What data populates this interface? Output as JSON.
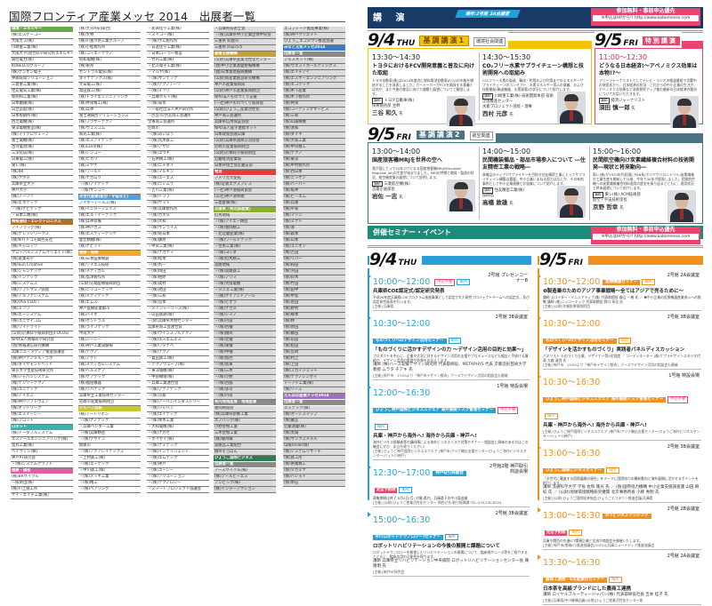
{
  "left_page": {
    "title": "国際フロンティア産業メッセ 2014　出展者一覧",
    "columns": [
      [
        {
          "h": "環境・エネルギー",
          "c": "#6aa84f"
        },
        "(株)エスケーコー",
        "大阪ガス(株)",
        "川崎重工業(株)",
        "大阪大学(接合科学研究所エネルギーセンター)",
        "関西電力(株)",
        "KOBELCOグループ",
        "(株)ケンオン電子",
        "神鋼環境ソリューション",
        "三菱重工業(株)",
        "住友電気工業(株)",
        "新明和工業(株)",
        "日本触媒(株)",
        "日立造船(株)",
        "日本製鋼所(株)",
        "西芝電機(株)",
        "東洋電機製造(株)",
        "(株)マイクロウェーブ",
        "富士電機(株)",
        "古河電池(株)",
        "三洋化成(株)",
        "日東電工(株)",
        "東レ(株)",
        "(株)IHI",
        "(株)クボタ",
        "兵庫県立大学",
        "神戸大学",
        "(株)ノーリツ",
        "(株)エネテック",
        "・(株)ナビテック",
        "・日本工機(株)",
        {
          "h": "情報通信・エレクトロニクス",
          "c": "#b0702a"
        },
        "アイフラッグ(株)",
        "(株)ナレッジワークス",
        "(株)NTTドコモ関西支社",
        "(株)キャロッツ",
        "グローバルシステムクリエイト(株)",
        "(株)産業光学",
        "(株)Sun Creative",
        "(株)シャンテック",
        "(株)インテック",
        "(株)システムズ",
        "(株)ソフトウェア開発",
        "(株)アルファシステム",
        "(株)OSS LSOFT",
        "(株)ミツワ",
        "(株)エーシステム",
        "(株)ユニサイコム",
        "(株)ワイドライト",
        "(公財)計算科学振興財団(FOCUS)",
        "NPO法人情報科学研究会",
        "(独)情報通信研究機構",
        "兵庫ニューメディア推進協議会",
        "(株)神戸デジタル・ラボ",
        "(株)ダイヤモンドヘッド",
        "東京大学生産技術研究所",
        "(株)ジャパンシステム",
        "(株)デンソーテクノ",
        "(株)ユニテック",
        "(株)アイエス",
        "(株)神戸ソフトウェア",
        "(株)ネットワーク",
        "(株)エスイーシー",
        "(株)プロット",
        {
          "h": "ロボット",
          "c": "#3bb3b3"
        },
        "(株)イーダブルシステム",
        "エスアールエンジニアリング(株)",
        "島丸工業(株)",
        "ベイウィン(株)",
        "神戸RT研究会",
        "・(株)システムクラフト",
        {
          "h": "健康・福祉",
          "c": "#e060a8"
        },
        "(株)BRサイクル",
        "一般財団(株)",
        "(株)川上鉄工所",
        "ケイ・エイチ工業(株)"
      ],
      [
        "(株)大分A技(関西)",
        "(株)大林",
        "(株)川重冷熱工業グループ",
        "(株)小松製作所",
        "(株)コーエーテクノ",
        "昭和電機(株)",
        "(株)東邦",
        "セントラル電気(株)",
        "ダイナテックス(株)",
        "大日電工(株)",
        "高田鉄工(株)",
        "(株)トライエンジニアリング",
        "(株)共栄精工(株)",
        "(株)兵神",
        "富士通関西ソリューションズ",
        "(株)ブラザーテクノ",
        "(株)ウェスコム",
        "和光工業(株)",
        "(株)エスアイテック",
        "(株)Land(株)",
        "(株)シンコー",
        "(株)ヒカリ",
        "(株)ミヤケ",
        "(株)ワールド",
        "(株)ナカムラ",
        "・(株)アイテック",
        "・(株)サンコー",
        {
          "h": "次世代産業(航空・宇宙など)",
          "c": "#5aa0d8"
        },
        "アイボーアールズ(株)",
        "(株)インターフェイス",
        "(株)エル・イーテック",
        "(株)兵神装備",
        "(株)神戸ガス",
        "(株)エスディーテック",
        "愛宕精機(株)",
        "(株)ナビット",
        {
          "h": "健康・医療",
          "c": "#f0a830"
        },
        "(株)日本医療機器",
        "(株)ワイエム技研",
        "(株)メディカル",
        "(株)島津製作所",
        "(公財)先端医療振興財団",
        "(株)ニッコーテック",
        "(株)メディテック",
        "(株)エムズ",
        "神戸医療産業都市",
        "(株)バイオ",
        "(株)セントラル",
        "(株)ライフテック",
        "甲南大学",
        "(株)ジーシー",
        "(株)神戸工業試験場",
        "(株)テクノ",
        "(株)アクト",
        "(株)メディカルシステム",
        "(株)ヘルスケア",
        "(株)ケアテック",
        "(株)福祉機器",
        "(株)リハテック",
        "兵庫県立工業技術センター",
        "尼崎市産業振興財団",
        {
          "h": "グループ出展",
          "c": "#c8c830"
        },
        "(株)アートリボン",
        "・(株)ナノテック",
        "・兵庫ベンダー工業",
        "・(株)兵庫精密",
        "・(株)デザイン",
        "姫路市",
        "・(株)アクアレイテックス",
        "・上村鉄工(株)",
        "・(株)ユーテック",
        "・中川鉄工(株)",
        "・(株)メッキ工業",
        "・(株)精工",
        "・(株)ベアリング"
      ],
      [
        "・新興化学工業(株)",
        "・スイコー(株)",
        "・(株)ポム製作所",
        "・日進化学工業(株)",
        "・日本ローラー製造",
        "・竹内工業(株)",
        "・北斗電子工業(株)",
        "・マルヤ(株)",
        "・(株)サンテック",
        "・(株)テクノアーツ",
        "・(株)ミツワ",
        "・兵庫ボルト(株)",
        "・(株)菊水",
        "・一般社団法人神戸研究所",
        "・西宮市/西宮商工会議所",
        "宝塚商工会議所",
        "尼崎市",
        "・(株)あいぼう",
        "・(株)荒木鉄工",
        "・(株)アサヒ",
        "・(株)ユウキ",
        "・石井精工(株)",
        "・(株)ニチダイ",
        "・(株)マルキン",
        "・(株)ユーエス",
        "・(株)ニシムラ",
        "・吉川工業(株)",
        "・(株)トップ",
        "・(株)ヤマト",
        "・(株)兵庫製作所",
        "・(株)カネタ",
        "・(株)大和",
        "・(株)サンライズ",
        "・(株)新日本",
        "・(株)藤原",
        "・中央工業(株)",
        "・(株)ナカヤマ",
        "・(株)松本",
        "・(株)丸一",
        "・(株)岡田",
        "・(株)柏原",
        "・(株)奥村",
        "・(株)池田",
        "・(株)三和",
        "・(株)宮本",
        "・メイジャーリース(株)",
        "・山田鉄鋼(株)",
        "・(財)兵庫県木材センター",
        "兵庫県商工会連合会",
        "・(株)ウインスブルテクノ",
        "・(株)エスエムエス",
        "・(株)ワタナベ",
        "・(株)テクノ",
        "・喜田鉄工(株)",
        "・テクノウェーブ(株)",
        "・東洋電機(株)",
        "・中部機械(株)",
        "・兵庫工業連合会",
        "・(株)アクアテック",
        "・(株)京都",
        "・(株)アーバンインダストリー",
        "・(株)ジャパン",
        "・(株)エイテック",
        "・(株)青木工業",
        "・大和電機(株)",
        "・(株)ナガセ",
        "・ホクセイ(株)",
        "・(株)ナミテック",
        "・(株)インテリジェント",
        "・(株)エムテック",
        "・(株)神戸",
        "・(株)ユーシー",
        "・(株)ソリューション",
        "・(株)テクノロジー",
        "・スマートプロジェクト協議会"
      ],
      [
        "・兵庫県技術士会",
        "・(株)兵庫県中小企業団体中央会",
        "三重県 鈴鹿市",
        "三重県 四日市市",
        {
          "h": "産業支援機関",
          "c": "#c8a040"
        },
        "(公財)兵庫県産業活性化センター",
        "(独)中小企業基盤整備機構",
        "(独)日本貿易振興機構",
        "(公財)新産業創造研究機構",
        "神戸市産業振興局",
        "(公財)神戸市産業振興財団",
        "NPO法人ものづくり支援",
        "(一社)神戸ものづくり振興会",
        "(公財)ひょうご産業活性化",
        "神戸商工会議所",
        "兵庫県信用保証協会",
        "NPO法人産学連携ネット",
        "日本政策金融公庫",
        "(公財)兵庫県国際交流協会",
        "尼崎市産業振興財団",
        "(公財)計算科学振興財団",
        "近畿経済産業局",
        "日本弁理士会近畿支部",
        {
          "h": "物流",
          "c": "#e04040"
        },
        "アメリカ大使館",
        "(株)近鉄エクスプレス",
        "(一社)神戸港振興協会",
        "(公社)神戸港埠頭",
        "三菱倉庫(株)",
        {
          "h": "兵庫県「県北部産業」",
          "c": "#8ab030"
        },
        "但馬地域",
        "・(株)アイエー精密",
        "・(株)豊岡精工",
        "・北近畿産業(株)",
        "・(株)ワールドテック",
        "・但馬工業(株)",
        "・(株)ヨシダ",
        "・(株)但馬精工",
        "淡路地域",
        "・(株)淡路鉄工",
        "・(株)アリマ",
        "・(株)大阪電機",
        "・タニエ工業(株)",
        "・(株)ケイアンドアール",
        "・(株)ピオラ",
        "・(株)ナカタ",
        "・(株)シマノ",
        "・(株)丹波",
        "・(株)西播",
        "・(株)播州",
        "・(株)北播",
        "・(株)東播",
        "・(株)中播",
        "・(株)加西",
        "・(株)加東",
        "・(株)三木",
        "・(株)小野",
        "・(株)西脇",
        "・(株)多可",
        "・(株)丹南",
        {
          "h": "県内地域産業・地場産業",
          "c": "#8a8a8a"
        },
        "豊岡鞄協会",
        "(株)兵庫県新鮮工業",
        "エアバッグ(株)",
        "小野金物工業",
        "三木金物工業",
        "(株)播州織",
        "淡路瓦工業組合",
        "播州そろばん",
        {
          "h": "ひょうご国際ビジネス",
          "c": "#2e7d4f"
        },
        {
          "h": "出展者一覧",
          "c": "#8a8a8a"
        },
        "アースサイクル(株)",
        "(株)アールビーエス",
        "アンビック(株)",
        "(株)インターアクション"
      ],
      [
        "エコフィード推進事業(株)",
        "(株)神戸クリエイト",
        "ひょうごエコタウン推進会議",
        {
          "h": "みなと元気メッセ2014",
          "c": "#3a7cc8"
        },
        {
          "h": "出展者一覧",
          "c": "#8a8a8a"
        },
        "アルスネット(株)",
        "(株)ウエストホールディングス",
        "(株)エイチアイ",
        "(株)エスケーエンジニアリング",
        "(株)エコテック",
        "(株)木下産業",
        "(株)木下製作所",
        "(株)共栄",
        "(株)コーティングサービス",
        "(株)三和",
        "(株)山陽精機",
        "(株)清和",
        "(株)ダイキ",
        "(株)大和工業",
        "(株)中央精工",
        "(株)テクノ",
        "(株)東洋",
        "(株)中村製作所",
        "(株)西日本",
        "(株)ニッケン",
        "(株)ハーバー",
        "(株)阪神",
        "(株)ビーエム",
        "(株)兵庫",
        "(株)平和",
        "(株)マリン",
        "(株)ミナト",
        "(株)港",
        "(株)森本",
        "(株)山本",
        "(株)ユニオン",
        "(株)吉田",
        "(株)リバー",
        "(株)和田",
        "(株)浜田",
        "(株)鈴木",
        "(株)竹田",
        "(株)田中",
        "(株)中島",
        "(株)長田",
        "(株)野村",
        "(株)橋本",
        "(株)林",
        "(株)原田",
        "(株)藤田",
        "(株)前田",
        "(株)松田",
        "(株)宮崎",
        "(株)村上",
        "(株)上田",
        "(株)スカイジェット",
        "(株)テクノシンセイ",
        "トーアイ工業(株)",
        "(株)リーズ",
        {
          "h": "たんぽぽ産業メッセ2014",
          "c": "#a070c0"
        },
        {
          "h": "出展者一覧",
          "c": "#8a8a8a"
        },
        "エステック(株)",
        "(株)オーシスマップ",
        "(株)園芸",
        "近畿測量(株)",
        "(株)太陽",
        "(株)サンクスメタル",
        "山陽ronak(株)",
        "(株)システムリサーチ",
        "(株)鉄工所",
        "(株)鷲尾精工",
        "(株)タカミヤ",
        "(株)ハシモト",
        "(株)明石"
      ]
    ]
  },
  "right_page": {
    "banner_title": "講 演",
    "banner_location": "場所:2号館 3A会議室",
    "free_label": "参加無料・事前申込優先",
    "apply_label": "※申込はHPから!! http://www.kobemesse.com",
    "keynote1": {
      "date": "9/4",
      "day": "THU",
      "tag": "基調講演1",
      "category": "環境社会関連",
      "talks": [
        {
          "time": "13:30～14:30",
          "title": "トヨタにおけるFCV開発意義と普及に向けた取組",
          "body": "トヨタ自動車(株)は2014年度内に燃料電池自動車(FCV)の市販を開始することを発表しました。カーメーカーがFCVを開発する意義とは何か、また今後の普及に向けた課題と展望についてご解説します。",
          "lecturer": "講師",
          "org": "トヨタ自動車(株)",
          "role": "技術統括部 主幹",
          "name": "三谷 和久",
          "suffix": "氏"
        },
        {
          "time": "14:30～15:30",
          "title": "CO₂フリー水素サプライチェーン構想と技術開発への取組み",
          "body": "CO₂フリー水素の製造、輸送・貯蔵および利用までのエネルギーサプライチェーンのコンセプト、水素エネルギー導入の意義、および技術開発(輸送機器、水素発電)の状況について紹介します。",
          "lecturer": "講師",
          "org": "川崎重工業(株) 技術開発本部 技術企画推進センター",
          "role": "水素プロジェクト部長・理事",
          "name": "西村 元彦",
          "suffix": "氏"
        }
      ]
    },
    "special": {
      "date": "9/5",
      "day": "FRI",
      "tag": "特別講演",
      "talk": {
        "time": "11:00～12:30",
        "title": "どうなる日本経済!～アベノミクス効果は本物!?～",
        "body": "フリージャーナリストとしてテレビ・ラジオの報道番組で活躍中の須田氏から、日本経済の状況、これからの中小企業の生き方、アベノミクス効果など消費税率アップ後の最新の日本経済の動向についてお話いただきます。",
        "lecturer": "講師",
        "org": "経済ジャーナリスト",
        "name": "須田 慎一郎",
        "suffix": "氏"
      }
    },
    "keynote2": {
      "date": "9/5",
      "day": "FRI",
      "tag": "基調講演2",
      "category": "航空関連",
      "talks": [
        {
          "time": "13:00～14:00",
          "title": "国産旅客機MRJを世界の空へ",
          "body": "我が国にとって50年ぶりとなる国産旅客機MRJ(Mitsubishi Regional Jet)の生産が始まりました。MRJの特徴と開発・製造の状況、航空機産業の展望について説明します。",
          "lecturer": "講師",
          "org": "三菱航空機(株)",
          "role": "営業企画部長",
          "name": "岩佐 一志",
          "suffix": "氏"
        },
        {
          "time": "14:00～15:00",
          "title": "民間機装備品・部品市場参入について ―住友精密工業の戦略―",
          "body": "装備品のティア1サプライヤーを目指す住友精密工業にとってサプライチェイン構築は重要。中小企業にまねる努力はなにか、その有効事例として中小企業連携との協業について紹介します。",
          "lecturer": "講師",
          "org": "住友精密工業(株)",
          "role": "技師長",
          "name": "高橋 敦雄",
          "suffix": "氏"
        },
        {
          "time": "15:00～16:00",
          "title": "民間航空機向け炭素繊維複合材料の技術開発―現状と将来動向―",
          "body": "東レ(株)が1970年代初頭にPAN系(ポリアクリロニトリル)炭素繊維の工業生産を開始して以来、今年で40年が経過しました。民間航空機への炭素繊維複合材料適用の歴史を振り返るとともに、適用状況と将来展望について紹介します。",
          "lecturer": "講師",
          "org": "東レ(株) ACM技術部",
          "role": "航空・宇宙技術室長",
          "name": "京野 哲幸",
          "suffix": "氏"
        }
      ]
    },
    "seminar_title": "併催セミナー・イベント",
    "thu": {
      "date": "9/4",
      "day": "THU",
      "events": [
        {
          "time": "10:00～12:00",
          "label": "",
          "req": "申込不要",
          "place_tag": "場所",
          "place": "2号館 プレゼンコーナーB",
          "title": "兵庫県COE認定式/認定研究発表",
          "body": "平成26年度兵庫県COEプログラム推進事業として認定された研究プロジェクトチームへの認定式、及び認定研究発表を行います。",
          "speaker": "",
          "host": "[主催] 兵庫県"
        },
        {
          "time": "10:30～12:00",
          "label": "ものづくりへのデザイン活用セミナー",
          "req": "",
          "place_tag": "場所",
          "place": "2号館 3B会議室",
          "title": "「ものづくりに活かすデザインの力 ～デザイン活用の目的と効果～」",
          "body": "プロダクトを中心に、企業や大学に対するデザイン活用の支援やプロデュースなども幅広く手掛ける講師が、デザイン活用の重要や効果をお伝えします。",
          "speaker": "講師 (株)ハーズ実験デザイン研究所 代表取締役、METAPHYS 代表 京都造形芸術大学 教授 ムラタ チアキ 氏",
          "host": "[主催] 神戸市　13:00より「神戸市デザイン都市」ブースでデザイン活用の相談会も開催"
        },
        {
          "time": "12:00～16:30",
          "label": "ひょうご神戸国際ビジネススクエア 海外展開リスク管理セミナー",
          "req": "申込不要",
          "place_tag": "場所",
          "place": "1号館 特設会場",
          "title": "兵庫・神戸から海外へ! 海外から兵庫・神戸へ!",
          "body": "海外ビジネス経験者等の講師陣による海外ビジネスリスク対策セミナー・相談会に興味のある方はこの機会にぜひ、お立ち寄りください!",
          "speaker": "",
          "host": "[主催] ひょうご神戸国際ビジネススクエア (神戸市/アジア輸出支援センター/ひょうご海外ビジネスセンター/ジェトロ神戸)"
        },
        {
          "time": "12:30～17:00",
          "label": "神戸取引商談会",
          "req": "完全予約制",
          "place_tag": "場所",
          "place": "2号館2階 神戸取引商談会場",
          "title": "",
          "body": "募集期間は終了 8月4日(月) 対象:県内、兵庫県下の中小製造業",
          "speaker": "",
          "host": "[主催] (公財)ひょうご産業活性化センター 問合せ先:取引振興課 TEL:078-230-8324"
        },
        {
          "time": "15:00～16:30",
          "label": "RT(ロボットテクノロジー)セミナー",
          "req": "",
          "place_tag": "場所",
          "place": "2号館 3B会議室",
          "title": "ロボットリハビリテーションの今後の展開と課題について",
          "body": "ロボットテクノロジーを駆使したリハビリテーションの現場について、臨床例やニーズ等をご紹介するとともに、臨床応用の可能性を探ります。",
          "speaker": "講師 兵庫県立リハビリテーション中央病院 ロボットリハビリテーションセンター長 陳 隆明 氏",
          "host": "[主催] 神戸RT研究会"
        }
      ]
    },
    "fri": {
      "date": "9/5",
      "day": "FRI",
      "events": [
        {
          "time": "10:30～12:00",
          "label": "医療機器セミナー",
          "req": "",
          "place_tag": "場所",
          "place": "2号館 2A会議室",
          "title": "❶製造業のためのアジア事業戦略～全てはアジアで売るために～",
          "body": "講師 スパイダー・イニシアティブ(株) 代表取締役 森辺 一樹 氏 ／ ❷中小企業の医療機器産業参入への挑戦 講師 (株)ニッコーテック 代表取締役 野口 享志 氏",
          "speaker": "",
          "host": "[主催] (公財)先端医療振興財団"
        },
        {
          "time": "10:30～12:00",
          "label": "ものづくりへのデザイン活用セミナー",
          "req": "",
          "place_tag": "場所",
          "place": "2号館 3B会議室",
          "title": "「デザインを活かすものづくり」実践者パネルディスカッション",
          "body": "パネリスト ものづくり企業、デザイナー等5名程度 ／ コーディネーター (株)ケプラデザインスタジオ代表 大森 清貴 氏",
          "speaker": "",
          "host": "[主催] 神戸市　13:00より「神戸市デザイン都市」ブースでデザイン活用の相談会も開催"
        },
        {
          "time": "10:30～16:30",
          "label": "ひょうご神戸国際ビジネススクエア 海外展開リスク管理セミナー",
          "req": "申込不要",
          "place_tag": "場所",
          "place": "1号館 特設会場",
          "title": "兵庫・神戸から海外へ! 海外から兵庫・神戸へ!",
          "body": "",
          "speaker": "",
          "host": "[主催] ひょうご神戸国際ビジネススクエア (神戸市/アジア輸出支援センター/ひょうご海外ビジネスセンター/ジェトロ神戸)"
        },
        {
          "time": "13:00～16:30",
          "label": "ひょうご国際ビジネスセミナー",
          "req": "",
          "place_tag": "場所",
          "place": "2号館 3B会議室",
          "title": "",
          "body": "「次世代に羅進する国際展開の現在」をテーマに国際協力の最新動向と海外展開に活かせるポイントを紹介します。",
          "speaker": "講師 流通科学大学 学長 佐和 隆光 氏 ／ (独)国際協力機構 中小企業支援調査課 山田 麻紀 氏 ／ (公財)地球環境戦略研究機関 北京事務所長 小柳 秀明 氏",
          "host": "[主催] (公財)ひょうご国際経済協会/ひょうごエコタウン推進会議/兵庫県"
        },
        {
          "time": "13:00～16:30",
          "label": "ICTビジネスマッチング",
          "req": "完全予約制",
          "place_tag": "場所",
          "place": "2号館 2B会議室",
          "title": "",
          "body": "兵庫や関西の先進ICT関連企業と交流が商談会を開催いたします。",
          "speaker": "",
          "host": "[主催] 神戸市/地域ICT推進協議会(COPLI)/兵庫ニューメディア推進協議会"
        },
        {
          "time": "13:30～16:30",
          "label": "農商工連携・6次産業化セミナー",
          "req": "",
          "place_tag": "場所",
          "place": "2号館 2A会議室",
          "title": "日本茶を高級ブランドにした農商工連携",
          "body": "",
          "speaker": "講師 ロイヤルブルーティージャパン(株) 代表取締役社長 吉本 桂子 氏",
          "host": "[主催] 兵庫県/中小機構近畿/(公財)ひょうご産業活性化センター他"
        }
      ]
    }
  },
  "colors": {
    "navy": "#173a66",
    "cyan": "#1ea0d8",
    "pink": "#e8456e",
    "yellow": "#f5c400",
    "slate": "#4a7483",
    "teal": "#1e8a7a",
    "blue": "#2aa0d8",
    "orange": "#f0901e"
  }
}
